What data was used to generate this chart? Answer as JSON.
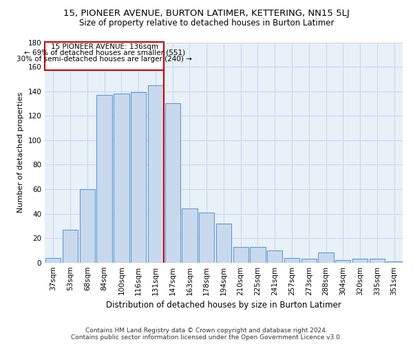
{
  "title1": "15, PIONEER AVENUE, BURTON LATIMER, KETTERING, NN15 5LJ",
  "title2": "Size of property relative to detached houses in Burton Latimer",
  "xlabel": "Distribution of detached houses by size in Burton Latimer",
  "ylabel": "Number of detached properties",
  "footer1": "Contains HM Land Registry data © Crown copyright and database right 2024.",
  "footer2": "Contains public sector information licensed under the Open Government Licence v3.0.",
  "categories": [
    "37sqm",
    "53sqm",
    "68sqm",
    "84sqm",
    "100sqm",
    "116sqm",
    "131sqm",
    "147sqm",
    "163sqm",
    "178sqm",
    "194sqm",
    "210sqm",
    "225sqm",
    "241sqm",
    "257sqm",
    "273sqm",
    "288sqm",
    "304sqm",
    "320sqm",
    "335sqm",
    "351sqm"
  ],
  "values": [
    4,
    27,
    60,
    137,
    138,
    139,
    145,
    130,
    44,
    41,
    32,
    13,
    13,
    10,
    4,
    3,
    8,
    2,
    3,
    3,
    1
  ],
  "bar_color": "#c9d9ed",
  "bar_edge_color": "#5b9bd5",
  "vline_x": 6.5,
  "vline_color": "#cc0000",
  "annotation_line1": "15 PIONEER AVENUE: 136sqm",
  "annotation_line2": "← 69% of detached houses are smaller (551)",
  "annotation_line3": "30% of semi-detached houses are larger (240) →",
  "annotation_box_color": "#cc0000",
  "annotation_box_fill": "#ffffff",
  "ylim": [
    0,
    180
  ],
  "yticks": [
    0,
    20,
    40,
    60,
    80,
    100,
    120,
    140,
    160,
    180
  ],
  "grid_color": "#c8d8e8",
  "bg_color": "#e8f0f8",
  "title1_fontsize": 9.5,
  "title2_fontsize": 8.5,
  "xlabel_fontsize": 8.5,
  "ylabel_fontsize": 8,
  "footer_fontsize": 6.5,
  "tick_fontsize": 7.5,
  "annot_fontsize": 7.5
}
